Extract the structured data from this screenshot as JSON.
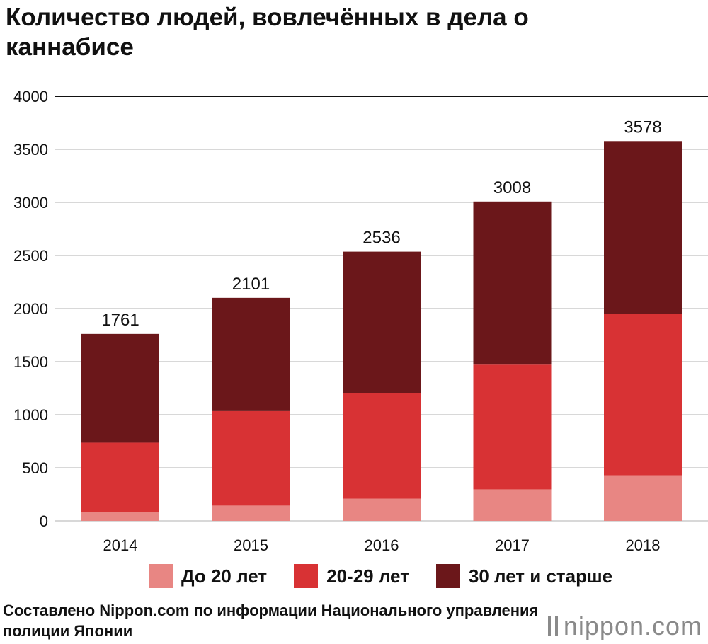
{
  "title": "Количество людей, вовлечённых в дела о каннабисе",
  "chart_data": {
    "type": "bar",
    "stacked": true,
    "categories": [
      "2014",
      "2015",
      "2016",
      "2017",
      "2018"
    ],
    "series": [
      {
        "name": "До 20 лет",
        "color": "#e88683",
        "values": [
          80,
          144,
          210,
          297,
          429
        ]
      },
      {
        "name": "20-29 лет",
        "color": "#d83234",
        "values": [
          657,
          890,
          990,
          1175,
          1521
        ]
      },
      {
        "name": "30 лет и старше",
        "color": "#6b171a",
        "values": [
          1024,
          1067,
          1336,
          1536,
          1628
        ]
      }
    ],
    "totals": [
      1761,
      2101,
      2536,
      3008,
      3578
    ],
    "ylim": [
      0,
      4000
    ],
    "yticks": [
      0,
      500,
      1000,
      1500,
      2000,
      2500,
      3000,
      3500,
      4000
    ],
    "grid": true,
    "legend_position": "bottom"
  },
  "source": "Составлено Nippon.com по информации Национального управления полиции Японии",
  "brand": {
    "name": "nippon",
    "suffix": ".com"
  }
}
